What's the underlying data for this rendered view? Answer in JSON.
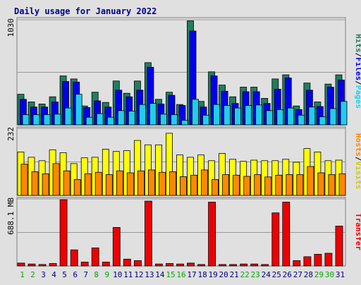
{
  "chart_data": [
    {
      "type": "bar",
      "title": "Daily usage for January 2022",
      "ylabel": "",
      "right_label": [
        "Hits",
        "Files",
        "Pages"
      ],
      "ymax_label": "1030",
      "ylim": [
        0,
        1030
      ],
      "categories": [
        "1",
        "2",
        "3",
        "4",
        "5",
        "6",
        "7",
        "8",
        "9",
        "10",
        "11",
        "12",
        "13",
        "14",
        "15",
        "16",
        "17",
        "18",
        "19",
        "20",
        "21",
        "22",
        "23",
        "24",
        "25",
        "26",
        "27",
        "28",
        "29",
        "30",
        "31"
      ],
      "weekend_days": [
        "1",
        "2",
        "8",
        "9",
        "15",
        "16",
        "22",
        "23",
        "29",
        "30"
      ],
      "series": [
        {
          "name": "Hits",
          "color": "#1f7f5f",
          "values": [
            300,
            225,
            205,
            275,
            480,
            450,
            185,
            320,
            220,
            430,
            310,
            430,
            610,
            250,
            320,
            200,
            1020,
            230,
            520,
            390,
            275,
            370,
            370,
            260,
            450,
            490,
            185,
            410,
            225,
            400,
            490
          ]
        },
        {
          "name": "Files",
          "color": "#0000ee",
          "values": [
            250,
            175,
            175,
            225,
            425,
            420,
            170,
            235,
            175,
            340,
            275,
            340,
            565,
            205,
            290,
            190,
            920,
            175,
            480,
            330,
            210,
            325,
            325,
            210,
            350,
            460,
            150,
            340,
            180,
            370,
            440
          ]
        },
        {
          "name": "Pages",
          "color": "#22ccee",
          "values": [
            100,
            100,
            100,
            105,
            165,
            300,
            75,
            110,
            75,
            140,
            135,
            200,
            210,
            105,
            100,
            45,
            250,
            95,
            200,
            190,
            165,
            190,
            195,
            140,
            150,
            165,
            95,
            175,
            80,
            160,
            230
          ]
        }
      ]
    },
    {
      "type": "bar",
      "title": "",
      "right_label": [
        "Hosts",
        "Visits"
      ],
      "ymax_label": "232",
      "ylim": [
        0,
        232
      ],
      "categories": [
        "1",
        "2",
        "3",
        "4",
        "5",
        "6",
        "7",
        "8",
        "9",
        "10",
        "11",
        "12",
        "13",
        "14",
        "15",
        "16",
        "17",
        "18",
        "19",
        "20",
        "21",
        "22",
        "23",
        "24",
        "25",
        "26",
        "27",
        "28",
        "29",
        "30",
        "31"
      ],
      "series": [
        {
          "name": "Visits",
          "color": "#ffff00",
          "values": [
            150,
            132,
            120,
            158,
            148,
            110,
            130,
            132,
            160,
            152,
            155,
            190,
            175,
            175,
            215,
            140,
            132,
            140,
            120,
            145,
            125,
            118,
            122,
            120,
            120,
            125,
            115,
            162,
            150,
            120,
            122
          ]
        },
        {
          "name": "Hosts",
          "color": "#ff8800",
          "values": [
            108,
            82,
            75,
            110,
            85,
            55,
            75,
            80,
            72,
            85,
            78,
            85,
            88,
            80,
            82,
            65,
            70,
            88,
            55,
            72,
            70,
            66,
            72,
            64,
            70,
            72,
            72,
            100,
            78,
            72,
            75
          ]
        }
      ]
    },
    {
      "type": "bar",
      "title": "",
      "right_label": [
        "Transfer"
      ],
      "ymax_label": "688.1 MB",
      "ylim": [
        0,
        688.1
      ],
      "categories": [
        "1",
        "2",
        "3",
        "4",
        "5",
        "6",
        "7",
        "8",
        "9",
        "10",
        "11",
        "12",
        "13",
        "14",
        "15",
        "16",
        "17",
        "18",
        "19",
        "20",
        "21",
        "22",
        "23",
        "24",
        "25",
        "26",
        "27",
        "28",
        "29",
        "30",
        "31"
      ],
      "series": [
        {
          "name": "Transfer",
          "color": "#ee0000",
          "values": [
            30,
            20,
            15,
            25,
            680,
            165,
            40,
            185,
            40,
            395,
            70,
            55,
            665,
            20,
            25,
            20,
            30,
            15,
            655,
            15,
            15,
            20,
            20,
            15,
            545,
            655,
            55,
            95,
            120,
            130,
            410
          ]
        }
      ]
    }
  ]
}
